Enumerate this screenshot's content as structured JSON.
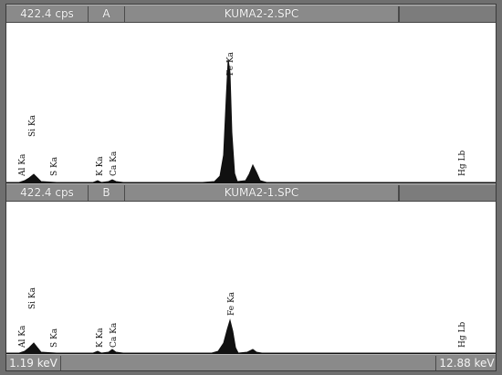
{
  "panels": [
    {
      "count_rate": "422.4 cps",
      "panel_letter": "A",
      "file_name": "KUMA2-2.SPC",
      "peak_labels": [
        "Al Ka",
        "Si Ka",
        "S Ka",
        "K Ka",
        "Ca Ka",
        "Fe Ka",
        "Hg Lb"
      ]
    },
    {
      "count_rate": "422.4 cps",
      "panel_letter": "B",
      "file_name": "KUMA2-1.SPC",
      "peak_labels": [
        "Al Ka",
        "Si Ka",
        "S Ka",
        "K Ka",
        "Ca Ka",
        "Fe Ka",
        "Hg Lb"
      ]
    }
  ],
  "axis": {
    "start_label": "1.19 keV",
    "end_label": "12.88 keV"
  },
  "colors": {
    "bar": "#8a8a8a",
    "plot_bg": "#ffffff",
    "spectrum": "#111111"
  }
}
